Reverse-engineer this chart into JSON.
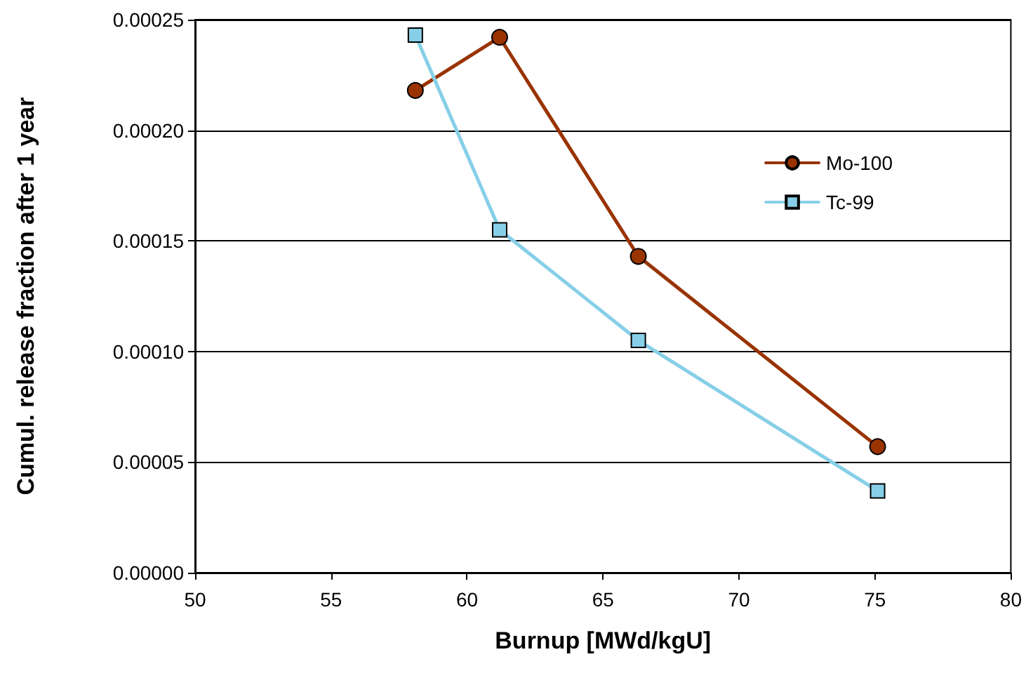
{
  "chart_data": {
    "type": "line",
    "xlabel": "Burnup [MWd/kgU]",
    "ylabel": "Cumul. release fraction after 1 year",
    "xlim": [
      50,
      80
    ],
    "xticks": [
      50,
      55,
      60,
      65,
      70,
      75,
      80
    ],
    "ylim": [
      0,
      0.00025
    ],
    "yticks": [
      {
        "value": 0,
        "label": "0.00000"
      },
      {
        "value": 5e-05,
        "label": "0.00005"
      },
      {
        "value": 0.0001,
        "label": "0.00010"
      },
      {
        "value": 0.00015,
        "label": "0.00015"
      },
      {
        "value": 0.0002,
        "label": "0.00020"
      },
      {
        "value": 0.00025,
        "label": "0.00025"
      }
    ],
    "grid": "y",
    "legend": "top right",
    "line_style": "solid",
    "series": [
      {
        "name": "Mo-100",
        "color": "#993300",
        "marker": "circle",
        "x": [
          58.1,
          61.2,
          66.3,
          75.1
        ],
        "values": [
          0.000218,
          0.000242,
          0.000143,
          5.7e-05
        ]
      },
      {
        "name": "Tc-99",
        "color": "#87cfe8",
        "marker": "square",
        "x": [
          58.1,
          61.2,
          66.3,
          75.1
        ],
        "values": [
          0.000243,
          0.000155,
          0.000105,
          3.7e-05
        ]
      }
    ]
  }
}
